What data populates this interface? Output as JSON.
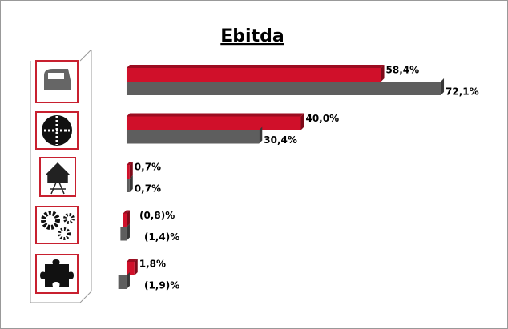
{
  "chart_data": {
    "type": "bar",
    "orientation": "horizontal",
    "title": "Ebitda",
    "categories": [
      null,
      null,
      null,
      null,
      null
    ],
    "xlim": [
      -10,
      80
    ],
    "series": [
      {
        "color": "#d0102a",
        "values": [
          58.4,
          40.0,
          0.7,
          -0.8,
          1.8
        ],
        "value_labels": [
          "58,4%",
          "40,0%",
          "0,7%",
          "(0,8)%",
          "1,8%"
        ]
      },
      {
        "color": "#5e5e5e",
        "values": [
          72.1,
          30.4,
          0.7,
          -1.4,
          -1.9
        ],
        "value_labels": [
          "72,1%",
          "30,4%",
          "0,7%",
          "(1,4)%",
          "(1,9)%"
        ]
      }
    ]
  }
}
